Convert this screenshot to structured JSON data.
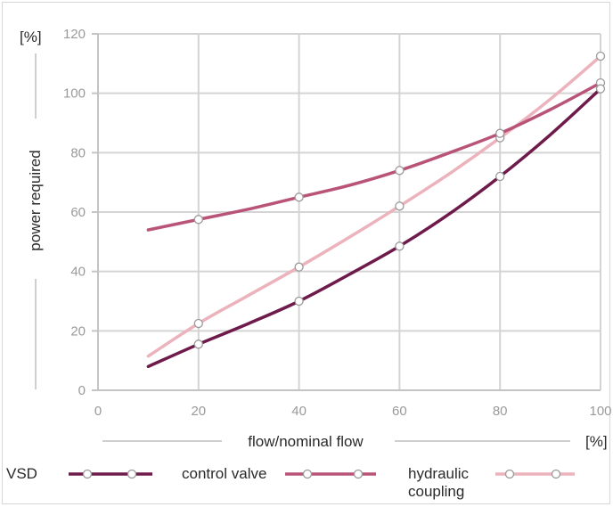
{
  "chart_data": {
    "type": "line",
    "xlabel": "flow/nominal flow",
    "ylabel": "power required",
    "x_unit": "[%]",
    "y_unit": "[%]",
    "xlim": [
      0,
      100
    ],
    "ylim": [
      0,
      120
    ],
    "x_ticks": [
      "0",
      "20",
      "40",
      "60",
      "80",
      "100"
    ],
    "y_ticks": [
      "0",
      "20",
      "40",
      "60",
      "80",
      "100",
      "120"
    ],
    "grid": true,
    "legend_position": "bottom",
    "series": [
      {
        "name": "VSD",
        "color": "#6e1a4a",
        "curve": [
          [
            10,
            8
          ],
          [
            20,
            15.5
          ],
          [
            30,
            22.5
          ],
          [
            40,
            30
          ],
          [
            50,
            39
          ],
          [
            60,
            48.5
          ],
          [
            70,
            59.5
          ],
          [
            80,
            72
          ],
          [
            90,
            86
          ],
          [
            100,
            101.5
          ]
        ],
        "markers": [
          [
            20,
            15.5
          ],
          [
            40,
            30
          ],
          [
            60,
            48.5
          ],
          [
            80,
            72
          ],
          [
            100,
            101.5
          ]
        ]
      },
      {
        "name": "control valve",
        "color": "#b95478",
        "curve": [
          [
            10,
            54
          ],
          [
            20,
            57.5
          ],
          [
            30,
            61
          ],
          [
            40,
            65
          ],
          [
            50,
            69
          ],
          [
            60,
            74
          ],
          [
            70,
            80
          ],
          [
            80,
            86.5
          ],
          [
            90,
            94.5
          ],
          [
            100,
            103.5
          ]
        ],
        "markers": [
          [
            20,
            57.5
          ],
          [
            40,
            65
          ],
          [
            60,
            74
          ],
          [
            80,
            86.5
          ],
          [
            100,
            103.5
          ]
        ]
      },
      {
        "name": "hydraulic\ncoupling",
        "label_lines": [
          "hydraulic",
          "coupling"
        ],
        "color": "#ecb3bc",
        "curve": [
          [
            10,
            11.5
          ],
          [
            20,
            22.5
          ],
          [
            30,
            32
          ],
          [
            40,
            41.5
          ],
          [
            50,
            51.5
          ],
          [
            60,
            62
          ],
          [
            70,
            73
          ],
          [
            80,
            85
          ],
          [
            90,
            98
          ],
          [
            100,
            112.5
          ]
        ],
        "markers": [
          [
            20,
            22.5
          ],
          [
            40,
            41.5
          ],
          [
            60,
            62
          ],
          [
            80,
            85
          ],
          [
            100,
            112.5
          ]
        ]
      }
    ]
  }
}
